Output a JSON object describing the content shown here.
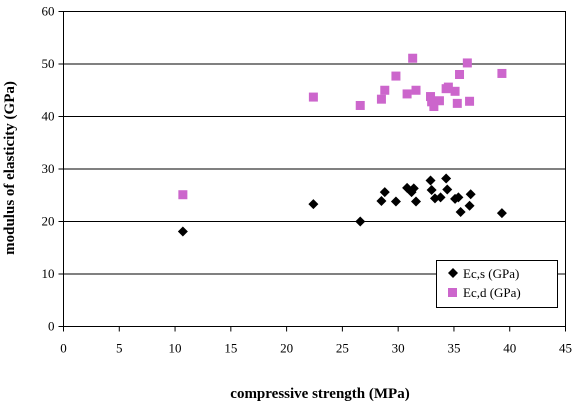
{
  "chart_data": {
    "type": "scatter",
    "xlabel": "compressive strength (MPa)",
    "ylabel": "modulus of elasticity (GPa)",
    "xlim": [
      0,
      45
    ],
    "ylim": [
      0,
      60
    ],
    "xticks": [
      "0",
      "5",
      "10",
      "15",
      "20",
      "25",
      "30",
      "35",
      "40",
      "45"
    ],
    "yticks": [
      "0",
      "10",
      "20",
      "30",
      "40",
      "50",
      "60"
    ],
    "grid": "horizontal",
    "legend_position": "bottom-right",
    "series": [
      {
        "name": "Ec,s (GPa)",
        "marker": "diamond",
        "color": "#000000",
        "points": [
          [
            10.7,
            18.1
          ],
          [
            22.4,
            23.3
          ],
          [
            26.6,
            20.0
          ],
          [
            28.5,
            23.9
          ],
          [
            28.8,
            25.6
          ],
          [
            29.8,
            23.8
          ],
          [
            30.8,
            26.4
          ],
          [
            31.2,
            25.6
          ],
          [
            31.4,
            26.3
          ],
          [
            31.6,
            23.8
          ],
          [
            32.9,
            27.8
          ],
          [
            33.0,
            26.0
          ],
          [
            33.3,
            24.4
          ],
          [
            33.8,
            24.6
          ],
          [
            34.3,
            28.2
          ],
          [
            34.4,
            26.1
          ],
          [
            35.1,
            24.3
          ],
          [
            35.4,
            24.6
          ],
          [
            35.6,
            21.8
          ],
          [
            36.4,
            23.0
          ],
          [
            36.5,
            25.2
          ],
          [
            39.3,
            21.6
          ]
        ]
      },
      {
        "name": "Ec,d (GPa)",
        "marker": "square",
        "color": "#cc66cc",
        "points": [
          [
            10.7,
            25.1
          ],
          [
            22.4,
            43.7
          ],
          [
            26.6,
            42.1
          ],
          [
            28.5,
            43.3
          ],
          [
            28.8,
            45.0
          ],
          [
            29.8,
            47.7
          ],
          [
            30.8,
            44.3
          ],
          [
            31.3,
            51.1
          ],
          [
            31.6,
            45.0
          ],
          [
            32.9,
            43.8
          ],
          [
            33.0,
            42.8
          ],
          [
            33.2,
            41.9
          ],
          [
            33.7,
            43.0
          ],
          [
            34.3,
            45.3
          ],
          [
            34.5,
            45.6
          ],
          [
            35.1,
            44.8
          ],
          [
            35.3,
            42.5
          ],
          [
            35.5,
            48.0
          ],
          [
            36.2,
            50.2
          ],
          [
            36.4,
            42.9
          ],
          [
            39.3,
            48.2
          ]
        ]
      }
    ]
  }
}
